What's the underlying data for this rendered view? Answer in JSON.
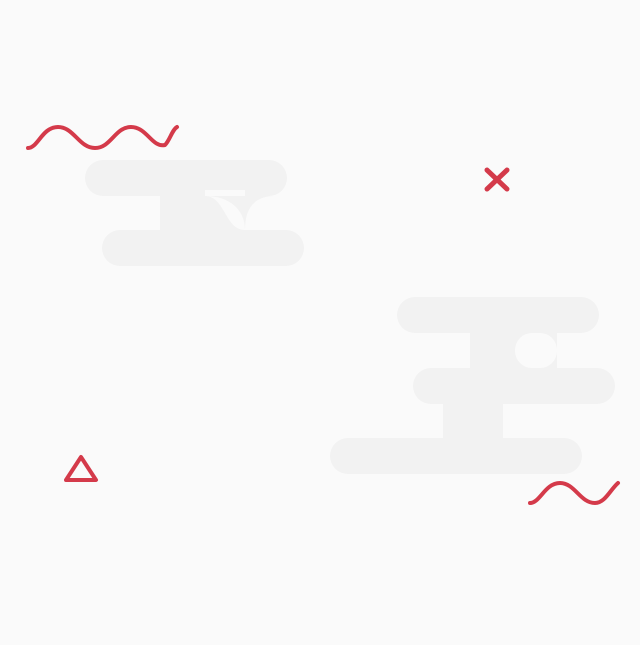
{
  "colors": {
    "background": "#fafafa",
    "cloud": "#f2f2f2",
    "accent": "#d43a4a"
  },
  "decorations": {
    "shapes": [
      "wave-icon",
      "close-icon",
      "triangle-icon",
      "wave-icon"
    ],
    "clouds": 2
  }
}
